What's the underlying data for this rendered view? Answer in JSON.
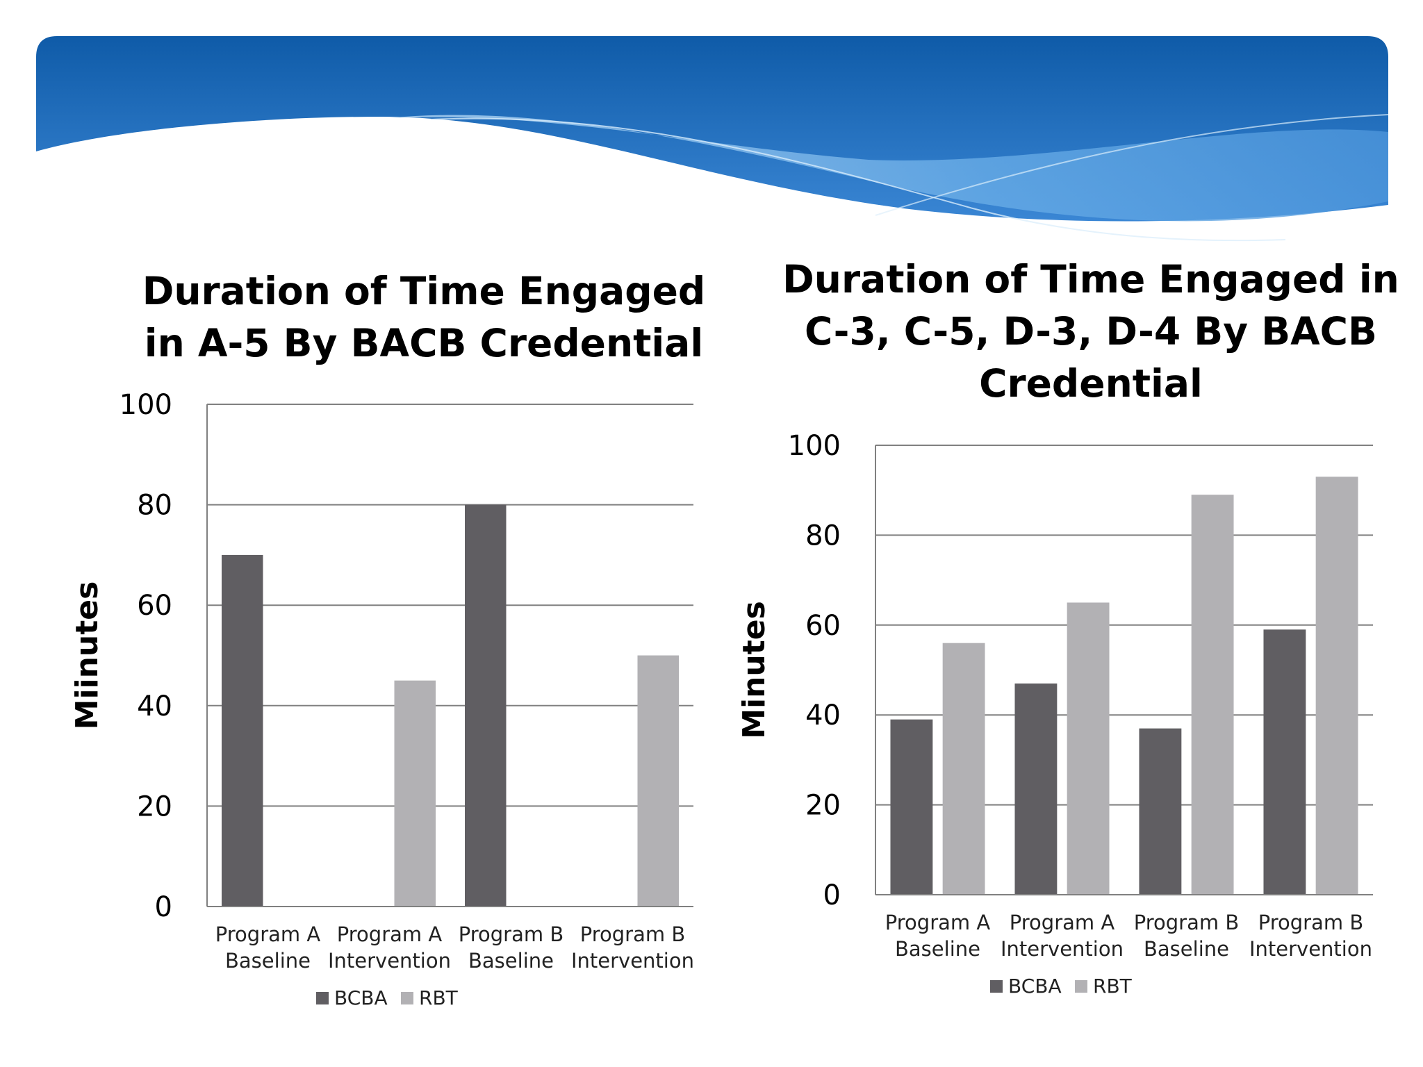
{
  "colors": {
    "bcba": "#605e62",
    "rbt": "#b2b1b4",
    "grid": "#808080",
    "banner_dark": "#0f5ba8",
    "banner_light": "#8cc3ef"
  },
  "chart_data": [
    {
      "type": "bar",
      "title_lines": [
        "Duration of Time Engaged",
        "in A-5 By BACB Credential"
      ],
      "ylabel": "Miinutes",
      "xlabel": "",
      "ylim": [
        0,
        100
      ],
      "yticks": [
        "0",
        "20",
        "40",
        "60",
        "80",
        "100"
      ],
      "categories": [
        [
          "Program A",
          "Baseline"
        ],
        [
          "Program A",
          "Intervention"
        ],
        [
          "Program B",
          "Baseline"
        ],
        [
          "Program B",
          "Intervention"
        ]
      ],
      "series": [
        {
          "name": "BCBA",
          "values": [
            70,
            0,
            80,
            0
          ]
        },
        {
          "name": "RBT",
          "values": [
            0,
            45,
            0,
            50
          ]
        }
      ],
      "legend": [
        "BCBA",
        "RBT"
      ],
      "legend_position": "bottom"
    },
    {
      "type": "bar",
      "title_lines": [
        "Duration of Time Engaged in",
        "C-3, C-5, D-3, D-4 By BACB",
        "Credential"
      ],
      "ylabel": "Minutes",
      "xlabel": "",
      "ylim": [
        0,
        100
      ],
      "yticks": [
        "0",
        "20",
        "40",
        "60",
        "80",
        "100"
      ],
      "categories": [
        [
          "Program A",
          "Baseline"
        ],
        [
          "Program A",
          "Intervention"
        ],
        [
          "Program B",
          "Baseline"
        ],
        [
          "Program B",
          "Intervention"
        ]
      ],
      "series": [
        {
          "name": "BCBA",
          "values": [
            39,
            47,
            37,
            59
          ]
        },
        {
          "name": "RBT",
          "values": [
            56,
            65,
            89,
            93
          ]
        }
      ],
      "legend": [
        "BCBA",
        "RBT"
      ],
      "legend_position": "bottom"
    }
  ]
}
